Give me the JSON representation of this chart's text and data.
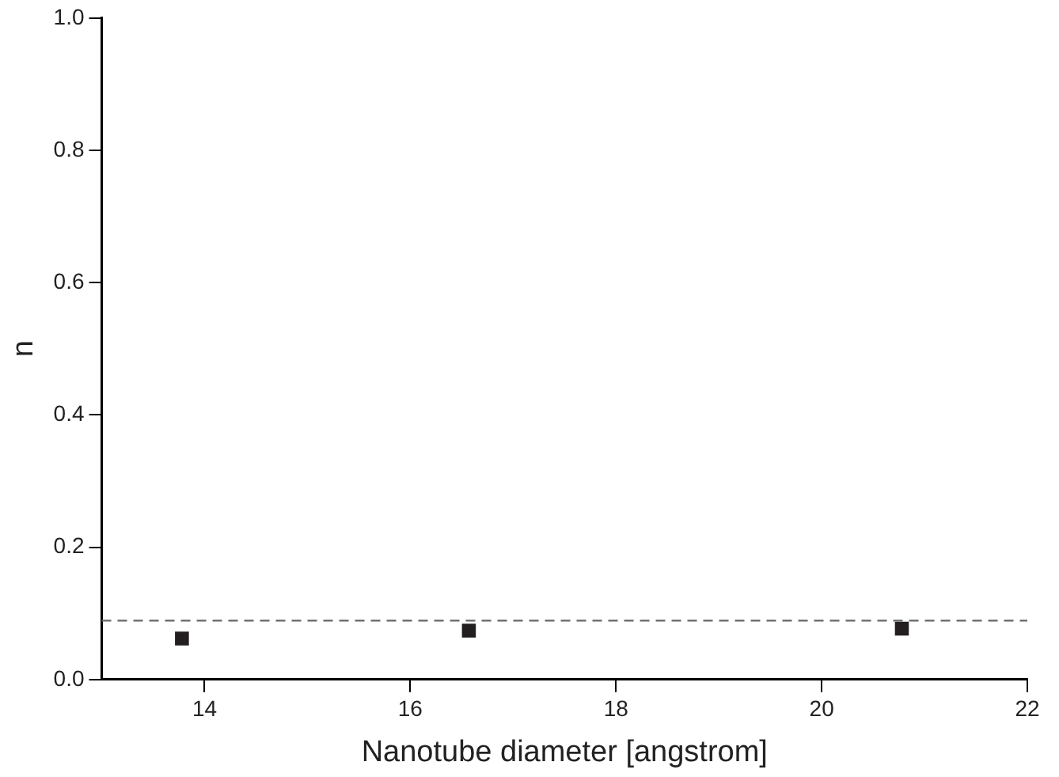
{
  "chart_data": {
    "type": "scatter",
    "xlabel": "Nanotube diameter [angstrom]",
    "ylabel": "n",
    "x": [
      13.78,
      16.57,
      20.78
    ],
    "values": [
      0.062,
      0.074,
      0.077
    ],
    "color": "#231f20",
    "marker": "square",
    "xlim": [
      13,
      22
    ],
    "xticks": [
      14,
      16,
      18,
      20,
      22
    ],
    "ylim": [
      0,
      1
    ],
    "yticks": [
      {
        "value": 0,
        "label": "0.0"
      },
      {
        "value": 0.2,
        "label": "0.2"
      },
      {
        "value": 0.4,
        "label": "0.4"
      },
      {
        "value": 0.6,
        "label": "0.6"
      },
      {
        "value": 0.8,
        "label": "0.8"
      },
      {
        "value": 1,
        "label": "1.0"
      }
    ],
    "ref_lines": [
      {
        "axis": "y",
        "value": 0.089,
        "color": "#666666",
        "line_style": "dashed"
      }
    ],
    "grid": false,
    "legend": false
  }
}
